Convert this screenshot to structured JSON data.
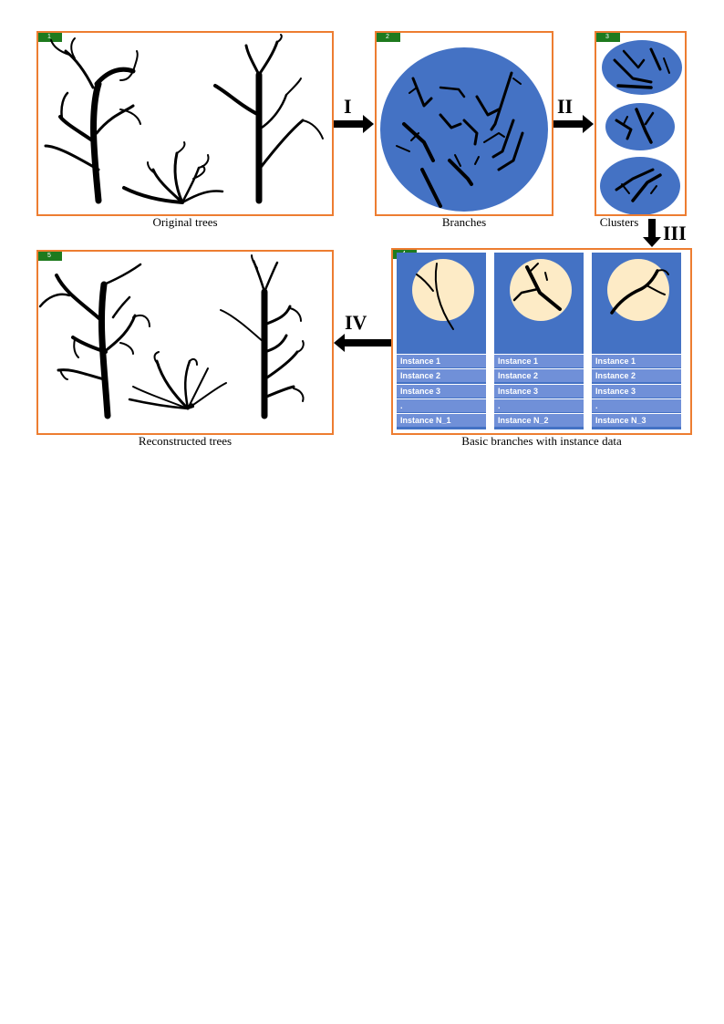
{
  "panels": {
    "p1": {
      "badge": "1",
      "caption": "Original trees"
    },
    "p2": {
      "badge": "2",
      "caption": "Branches"
    },
    "p3": {
      "badge": "3",
      "caption": "Clusters"
    },
    "p4": {
      "badge": "4",
      "caption": "Basic branches with instance data"
    },
    "p5": {
      "badge": "5",
      "caption": "Reconstructed trees"
    }
  },
  "steps": {
    "s1": "I",
    "s2": "II",
    "s3": "III",
    "s4": "IV"
  },
  "instance_columns": [
    {
      "rows": [
        "Instance 1",
        "Instance 2",
        "Instance 3",
        ".",
        "Instance N_1"
      ]
    },
    {
      "rows": [
        "Instance 1",
        "Instance 2",
        "Instance 3",
        ".",
        "Instance N_2"
      ]
    },
    {
      "rows": [
        "Instance 1",
        "Instance 2",
        "Instance 3",
        ".",
        "Instance N_3"
      ]
    }
  ],
  "colors": {
    "frame": "#ED7D31",
    "badge": "#1E7A1E",
    "blue": "#4472C4",
    "row": "#7090D8",
    "cream": "#FDEBC6"
  }
}
